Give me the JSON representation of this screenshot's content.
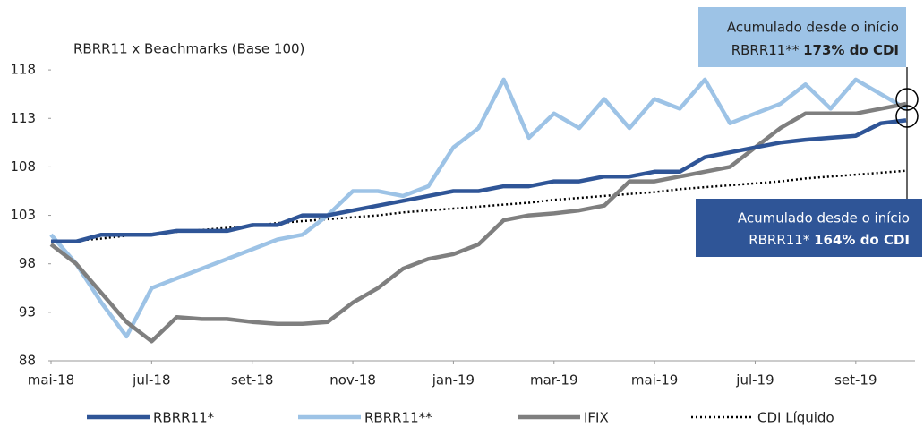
{
  "chart_data": {
    "type": "line",
    "title": "RBRR11 x Beachmarks (Base 100)",
    "categories": [
      "mai-18",
      null,
      null,
      null,
      "jul-18",
      null,
      null,
      null,
      "set-18",
      null,
      null,
      null,
      "nov-18",
      null,
      null,
      null,
      "jan-19",
      null,
      null,
      null,
      "mar-19",
      null,
      null,
      null,
      "mai-19",
      null,
      null,
      null,
      "jul-19",
      null,
      null,
      null,
      "set-19",
      null,
      null
    ],
    "series": [
      {
        "name": "RBRR11*",
        "color": "#2f5597",
        "style": "solid",
        "values": [
          100.3,
          100.3,
          101,
          101,
          101,
          101.4,
          101.4,
          101.4,
          102,
          102,
          103,
          103,
          103.5,
          104,
          104.5,
          105,
          105.5,
          105.5,
          106,
          106,
          106.5,
          106.5,
          107,
          107,
          107.5,
          107.5,
          109,
          109.5,
          110,
          110.5,
          110.8,
          111,
          111.2,
          112.5,
          112.8
        ]
      },
      {
        "name": "RBRR11**",
        "color": "#9dc3e6",
        "style": "solid",
        "values": [
          101,
          98,
          94,
          90.5,
          95.5,
          96.5,
          97.5,
          98.5,
          99.5,
          100.5,
          101,
          103,
          105.5,
          105.5,
          105,
          106,
          110,
          112,
          117,
          111,
          113.5,
          112,
          115,
          112,
          115,
          114,
          117,
          112.5,
          113.5,
          114.5,
          116.5,
          114,
          117,
          115.5,
          114
        ]
      },
      {
        "name": "IFIX",
        "color": "#7f7f7f",
        "style": "solid",
        "values": [
          100,
          98,
          95,
          92,
          90,
          92.5,
          92.3,
          92.3,
          92,
          91.8,
          91.8,
          92,
          94,
          95.5,
          97.5,
          98.5,
          99,
          100,
          102.5,
          103,
          103.2,
          103.5,
          104,
          106.5,
          106.5,
          107,
          107.5,
          108,
          110,
          112,
          113.5,
          113.5,
          113.5,
          114,
          114.5
        ]
      },
      {
        "name": "CDI Líquido",
        "color": "#000000",
        "style": "dotted",
        "values": [
          100.2,
          100.4,
          100.6,
          100.9,
          101.1,
          101.3,
          101.5,
          101.7,
          101.9,
          102.2,
          102.4,
          102.6,
          102.8,
          103.0,
          103.3,
          103.5,
          103.7,
          103.9,
          104.1,
          104.3,
          104.6,
          104.8,
          105.0,
          105.2,
          105.4,
          105.7,
          105.9,
          106.1,
          106.3,
          106.5,
          106.8,
          107.0,
          107.2,
          107.4,
          107.6
        ]
      }
    ],
    "ylim": [
      88,
      118.5
    ],
    "yticks": [
      88,
      93,
      98,
      103,
      108,
      113,
      118
    ],
    "legend": "bottom",
    "annotations": [
      {
        "line1": "Acumulado desde o início",
        "prefix": "RBRR11**",
        "bold": "173% do CDI"
      },
      {
        "line1": "Acumulado desde o início",
        "prefix": "RBRR11*",
        "bold": "164% do CDI"
      }
    ]
  }
}
